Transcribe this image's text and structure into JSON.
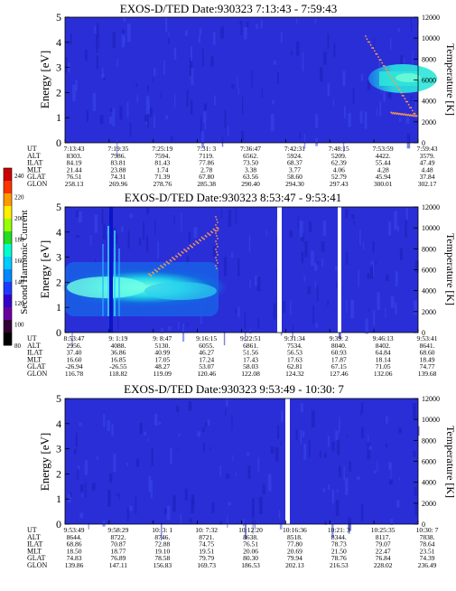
{
  "colorbar": {
    "label": "Second Harmonic Current",
    "ticks": [
      "240",
      "220",
      "200",
      "180",
      "160",
      "140",
      "120",
      "100",
      "80"
    ]
  },
  "row_labels": [
    "UT",
    "ALT",
    "ILAT",
    "MLT",
    "GLAT",
    "GLON"
  ],
  "chart_data": [
    {
      "type": "heatmap",
      "title": "EXOS-D/TED   Date:930323   7:13:43 - 7:59:43",
      "ylabel": "Energy [eV]",
      "ylabel_right": "Temperature [K]",
      "ylim": [
        0,
        5
      ],
      "y2lim": [
        0,
        12000
      ],
      "yticks": [
        "0",
        "1",
        "2",
        "3",
        "4",
        "5"
      ],
      "y2ticks": [
        "0",
        "2000",
        "4000",
        "6000",
        "8000",
        "10000",
        "12000"
      ],
      "ephemeris": [
        [
          "7:13:43",
          "7:19:35",
          "7:25:19",
          "7:31: 3",
          "7:36:47",
          "7:42:31",
          "7:48:15",
          "7:53:59",
          "7:59:43"
        ],
        [
          "8303.",
          "7986.",
          "7594.",
          "7119.",
          "6562.",
          "5924.",
          "5209.",
          "4422.",
          "3579."
        ],
        [
          "84.19",
          "83.81",
          "81.43",
          "77.86",
          "73.50",
          "68.37",
          "62.39",
          "55.44",
          "47.49"
        ],
        [
          "21.44",
          "23.88",
          "1.74",
          "2.78",
          "3.38",
          "3.77",
          "4.06",
          "4.28",
          "4.48"
        ],
        [
          "76.51",
          "74.31",
          "71.39",
          "67.80",
          "63.56",
          "58.60",
          "52.79",
          "45.94",
          "37.84"
        ],
        [
          "258.13",
          "269.96",
          "278.76",
          "285.38",
          "290.40",
          "294.30",
          "297.43",
          "300.01",
          "302.17"
        ]
      ]
    },
    {
      "type": "heatmap",
      "title": "EXOS-D/TED   Date:930323   8:53:47 - 9:53:41",
      "ylabel": "Energy [eV]",
      "ylabel_right": "Temperature [K]",
      "ylim": [
        0,
        5
      ],
      "y2lim": [
        0,
        12000
      ],
      "yticks": [
        "0",
        "1",
        "2",
        "3",
        "4",
        "5"
      ],
      "y2ticks": [
        "0",
        "2000",
        "4000",
        "6000",
        "8000",
        "10000",
        "12000"
      ],
      "ephemeris": [
        [
          "8:53:47",
          "9: 1:19",
          "9: 8:47",
          "9:16:15",
          "9:22:51",
          "9:31:34",
          "9:39: 2",
          "9:46:13",
          "9:53:41"
        ],
        [
          "2956.",
          "4088.",
          "5130.",
          "6055.",
          "6861.",
          "7534.",
          "8040.",
          "8402.",
          "8641."
        ],
        [
          "37.40",
          "36.86",
          "40.99",
          "46.27",
          "51.56",
          "56.53",
          "60.93",
          "64.84",
          "68.60"
        ],
        [
          "16.60",
          "16.85",
          "17.05",
          "17.24",
          "17.43",
          "17.63",
          "17.87",
          "18.14",
          "18.49"
        ],
        [
          "-26.94",
          "-26.55",
          "48.27",
          "53.07",
          "58.03",
          "62.81",
          "67.15",
          "71.05",
          "74.77"
        ],
        [
          "116.78",
          "118.82",
          "119.09",
          "120.46",
          "122.08",
          "124.32",
          "127.46",
          "132.06",
          "139.68"
        ]
      ]
    },
    {
      "type": "heatmap",
      "title": "EXOS-D/TED   Date:930323   9:53:49 - 10:30: 7",
      "ylabel": "Energy [eV]",
      "ylabel_right": "Temperature [K]",
      "ylim": [
        0,
        5
      ],
      "y2lim": [
        0,
        12000
      ],
      "yticks": [
        "0",
        "1",
        "2",
        "3",
        "4",
        "5"
      ],
      "y2ticks": [
        "0",
        "2000",
        "4000",
        "6000",
        "8000",
        "10000",
        "12000"
      ],
      "ephemeris": [
        [
          "9:53:49",
          "9:58:29",
          "10: 3: 1",
          "10: 7:32",
          "10:12:20",
          "10:16:36",
          "10:21: 3",
          "10:25:35",
          "10:30: 7"
        ],
        [
          "8644.",
          "8722.",
          "8746.",
          "8721.",
          "8638.",
          "8518.",
          "8344.",
          "8117.",
          "7838."
        ],
        [
          "68.86",
          "70.87",
          "72.88",
          "74.75",
          "76.51",
          "77.80",
          "78.73",
          "79.07",
          "78.64"
        ],
        [
          "18.50",
          "18.77",
          "19.10",
          "19.51",
          "20.06",
          "20.69",
          "21.50",
          "22.47",
          "23.51"
        ],
        [
          "74.83",
          "76.89",
          "78.58",
          "79.79",
          "80.30",
          "79.94",
          "78.76",
          "76.84",
          "74.39"
        ],
        [
          "139.86",
          "147.11",
          "156.83",
          "169.73",
          "186.53",
          "202.13",
          "216.53",
          "228.02",
          "236.49"
        ]
      ]
    }
  ]
}
